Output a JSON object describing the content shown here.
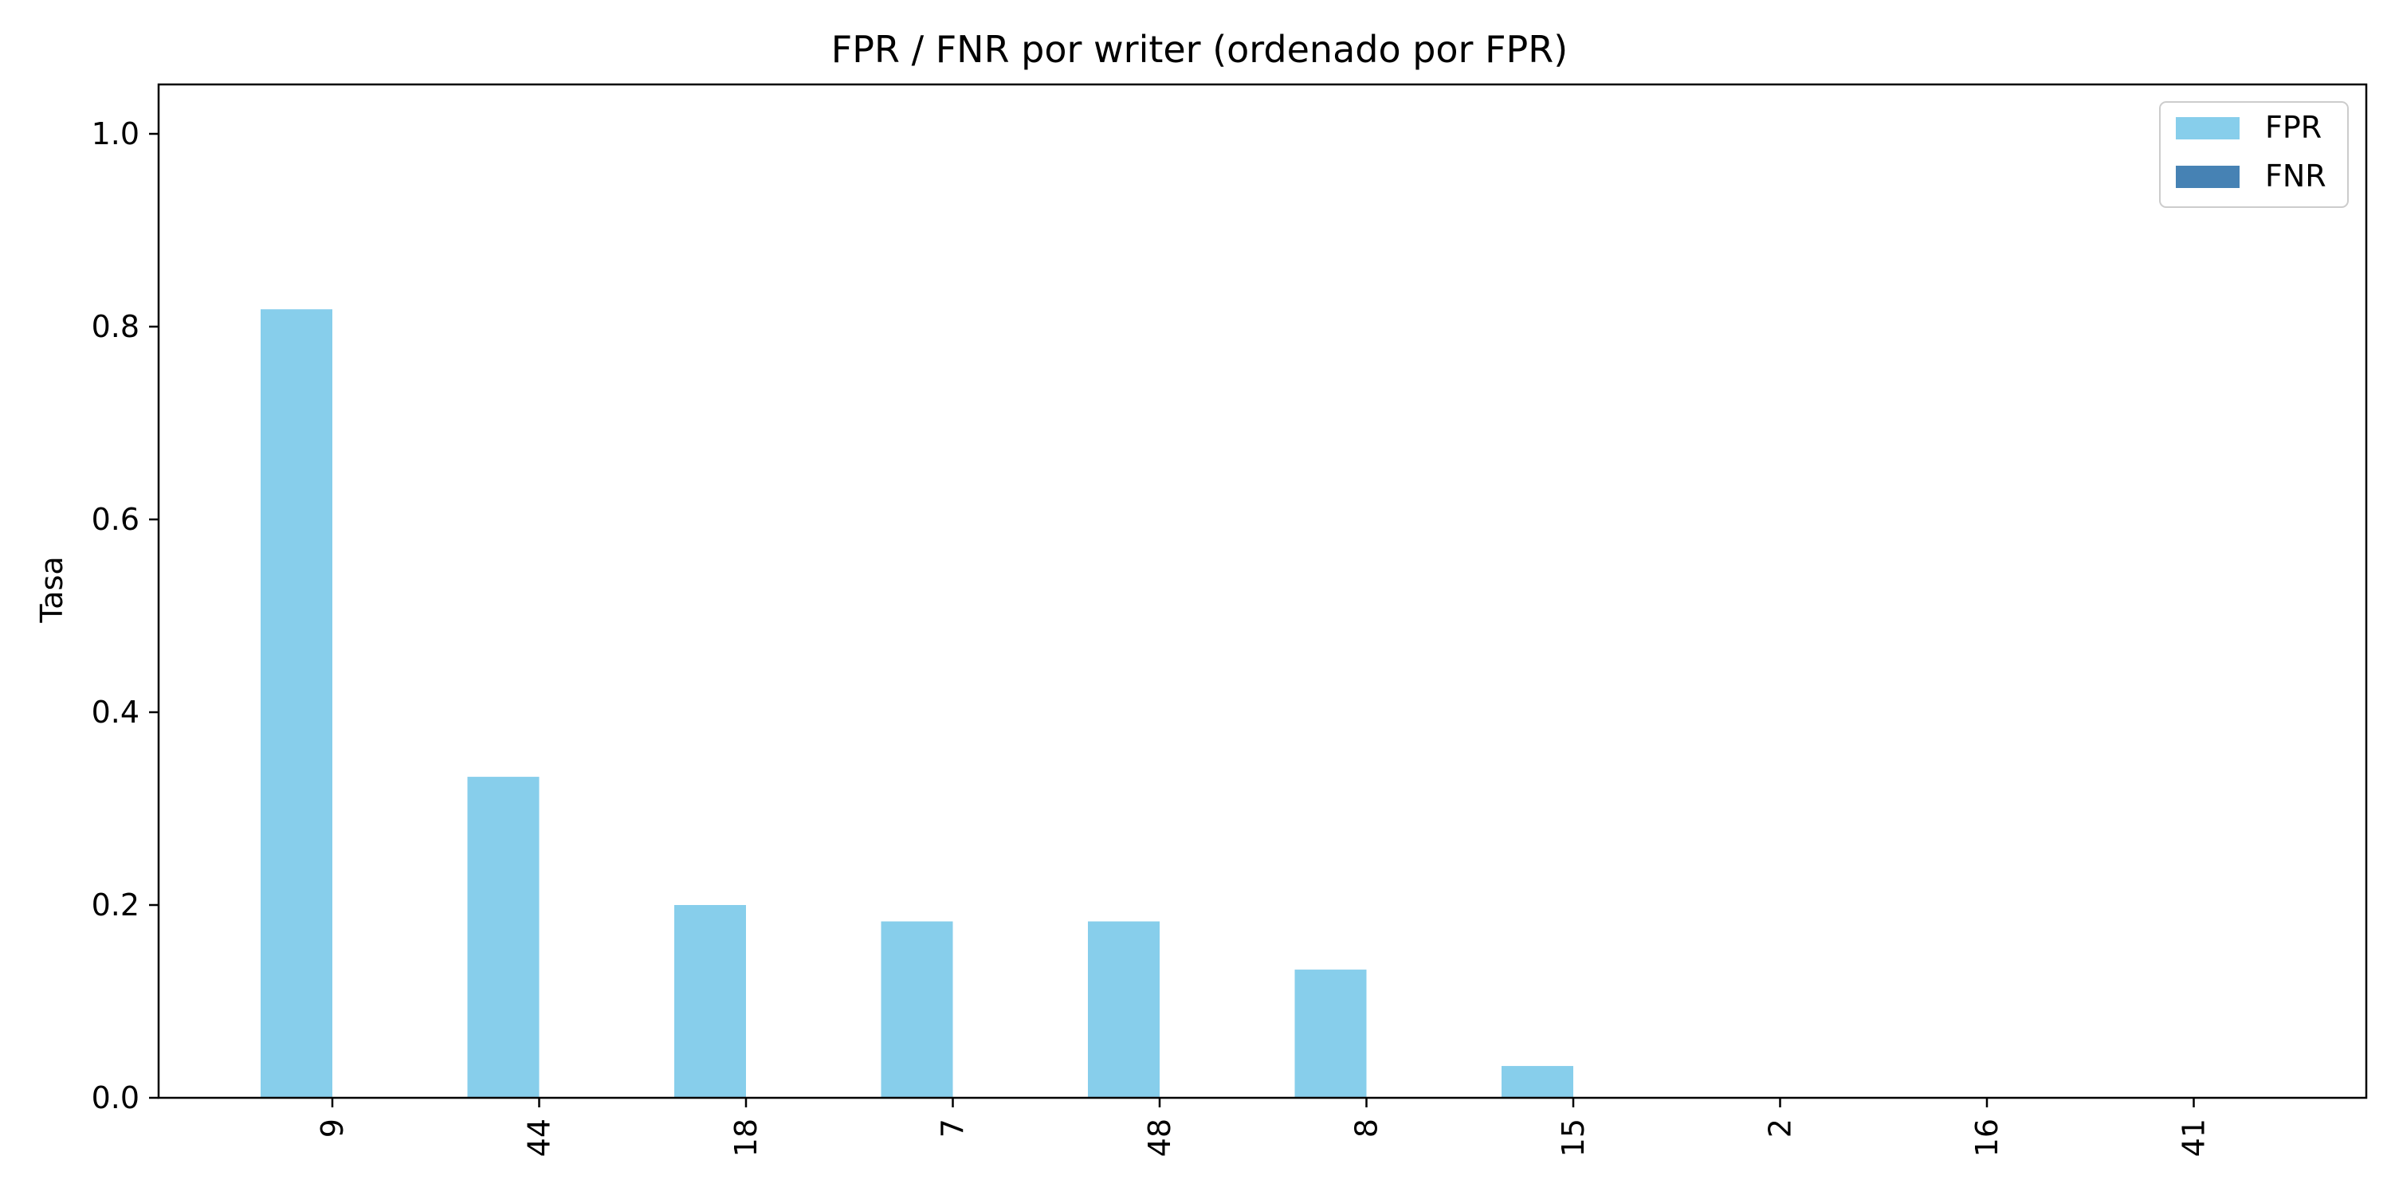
{
  "chart_data": {
    "type": "bar",
    "title": "FPR / FNR por writer (ordenado por FPR)",
    "xlabel": "",
    "ylabel": "Tasa",
    "categories": [
      "9",
      "44",
      "18",
      "7",
      "48",
      "8",
      "15",
      "2",
      "16",
      "41"
    ],
    "series": [
      {
        "name": "FPR",
        "color": "#87ceeb",
        "values": [
          0.818,
          0.333,
          0.2,
          0.183,
          0.183,
          0.133,
          0.033,
          0,
          0,
          0
        ]
      },
      {
        "name": "FNR",
        "color": "#4682b4",
        "values": [
          0,
          0,
          0,
          0,
          0,
          0,
          0,
          0,
          0,
          0
        ]
      }
    ],
    "ylim": [
      0,
      1.05
    ],
    "yticks": [
      "0.0",
      "0.2",
      "0.4",
      "0.6",
      "0.8",
      "1.0"
    ],
    "legend_position": "top-right",
    "grid": false
  }
}
